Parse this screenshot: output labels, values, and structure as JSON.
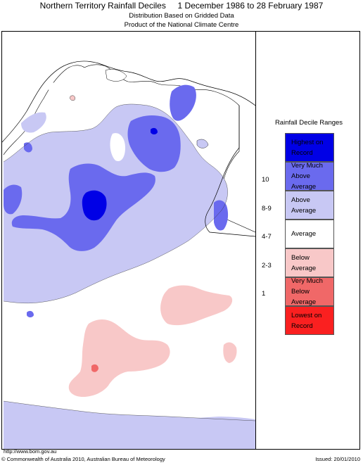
{
  "header": {
    "title": "Northern Territory Rainfall Deciles     1 December 1986 to 28 February 1987",
    "subtitle1": "Distribution Based on Gridded Data",
    "subtitle2": "Product of the National Climate Centre"
  },
  "legend": {
    "title": "Rainfall Decile Ranges",
    "items": [
      {
        "range": "",
        "label": "Highest on Record",
        "color": "#0000e6"
      },
      {
        "range": "10",
        "label": "Very Much Above Average",
        "color": "#6a6aee"
      },
      {
        "range": "8-9",
        "label": "Above Average",
        "color": "#c8c8f4"
      },
      {
        "range": "4-7",
        "label": "Average",
        "color": "#ffffff"
      },
      {
        "range": "2-3",
        "label": "Below Average",
        "color": "#f8c8c8"
      },
      {
        "range": "1",
        "label": "Very Much Below Average",
        "color": "#f06868"
      },
      {
        "range": "",
        "label": "Lowest on Record",
        "color": "#fa2020"
      }
    ]
  },
  "footer": {
    "url": "http://www.bom.gov.au",
    "copyright": "© Commonwealth of Australia 2010, Australian Bureau of Meteorology",
    "issued": "Issued: 20/01/2010"
  }
}
